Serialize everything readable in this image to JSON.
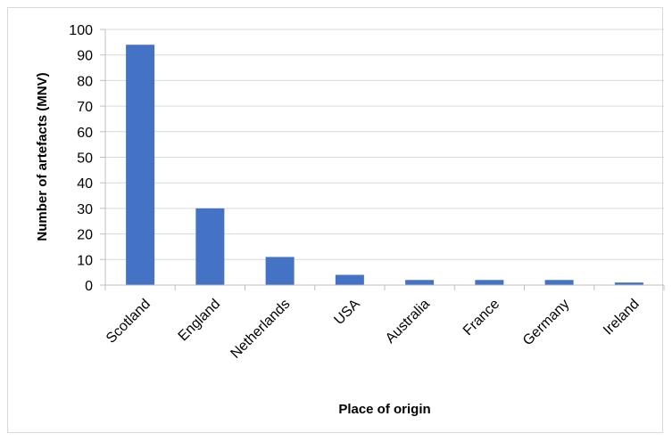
{
  "chart_data": {
    "type": "bar",
    "categories": [
      "Scotland",
      "England",
      "Netherlands",
      "USA",
      "Australia",
      "France",
      "Germany",
      "Ireland"
    ],
    "values": [
      94,
      30,
      11,
      4,
      2,
      2,
      2,
      1
    ],
    "title": "",
    "xlabel": "Place of origin",
    "ylabel": "Number of artefacts (MNV)",
    "ylim": [
      0,
      100
    ],
    "yticks": [
      0,
      10,
      20,
      30,
      40,
      50,
      60,
      70,
      80,
      90,
      100
    ],
    "grid": true,
    "legend": "none",
    "bar_color": "#4472c4",
    "gridline_color": "#d9d9d9"
  }
}
